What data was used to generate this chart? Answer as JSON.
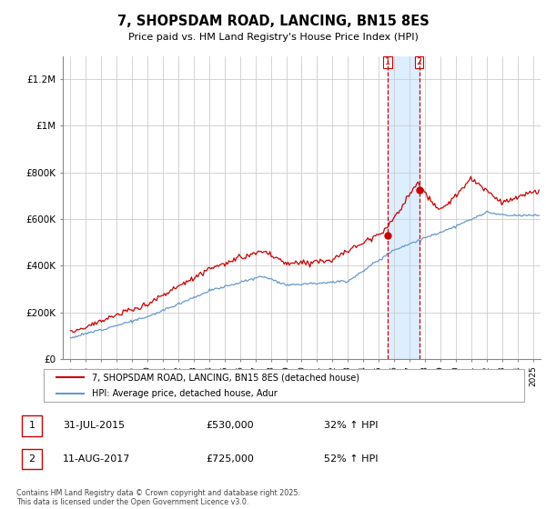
{
  "title": "7, SHOPSDAM ROAD, LANCING, BN15 8ES",
  "subtitle": "Price paid vs. HM Land Registry's House Price Index (HPI)",
  "legend_line1": "7, SHOPSDAM ROAD, LANCING, BN15 8ES (detached house)",
  "legend_line2": "HPI: Average price, detached house, Adur",
  "transaction1_date": "31-JUL-2015",
  "transaction1_price": 530000,
  "transaction1_hpi": "32% ↑ HPI",
  "transaction1_year": 2015.58,
  "transaction2_date": "11-AUG-2017",
  "transaction2_price": 725000,
  "transaction2_hpi": "52% ↑ HPI",
  "transaction2_year": 2017.62,
  "red_color": "#cc0000",
  "blue_color": "#6699cc",
  "shade_color": "#ddeeff",
  "footnote": "Contains HM Land Registry data © Crown copyright and database right 2025.\nThis data is licensed under the Open Government Licence v3.0.",
  "ylim": [
    0,
    1300000
  ],
  "xlim": [
    1994.5,
    2025.5
  ],
  "yticks": [
    0,
    200000,
    400000,
    600000,
    800000,
    1000000,
    1200000
  ],
  "ylabels": [
    "£0",
    "£200K",
    "£400K",
    "£600K",
    "£800K",
    "£1M",
    "£1.2M"
  ]
}
